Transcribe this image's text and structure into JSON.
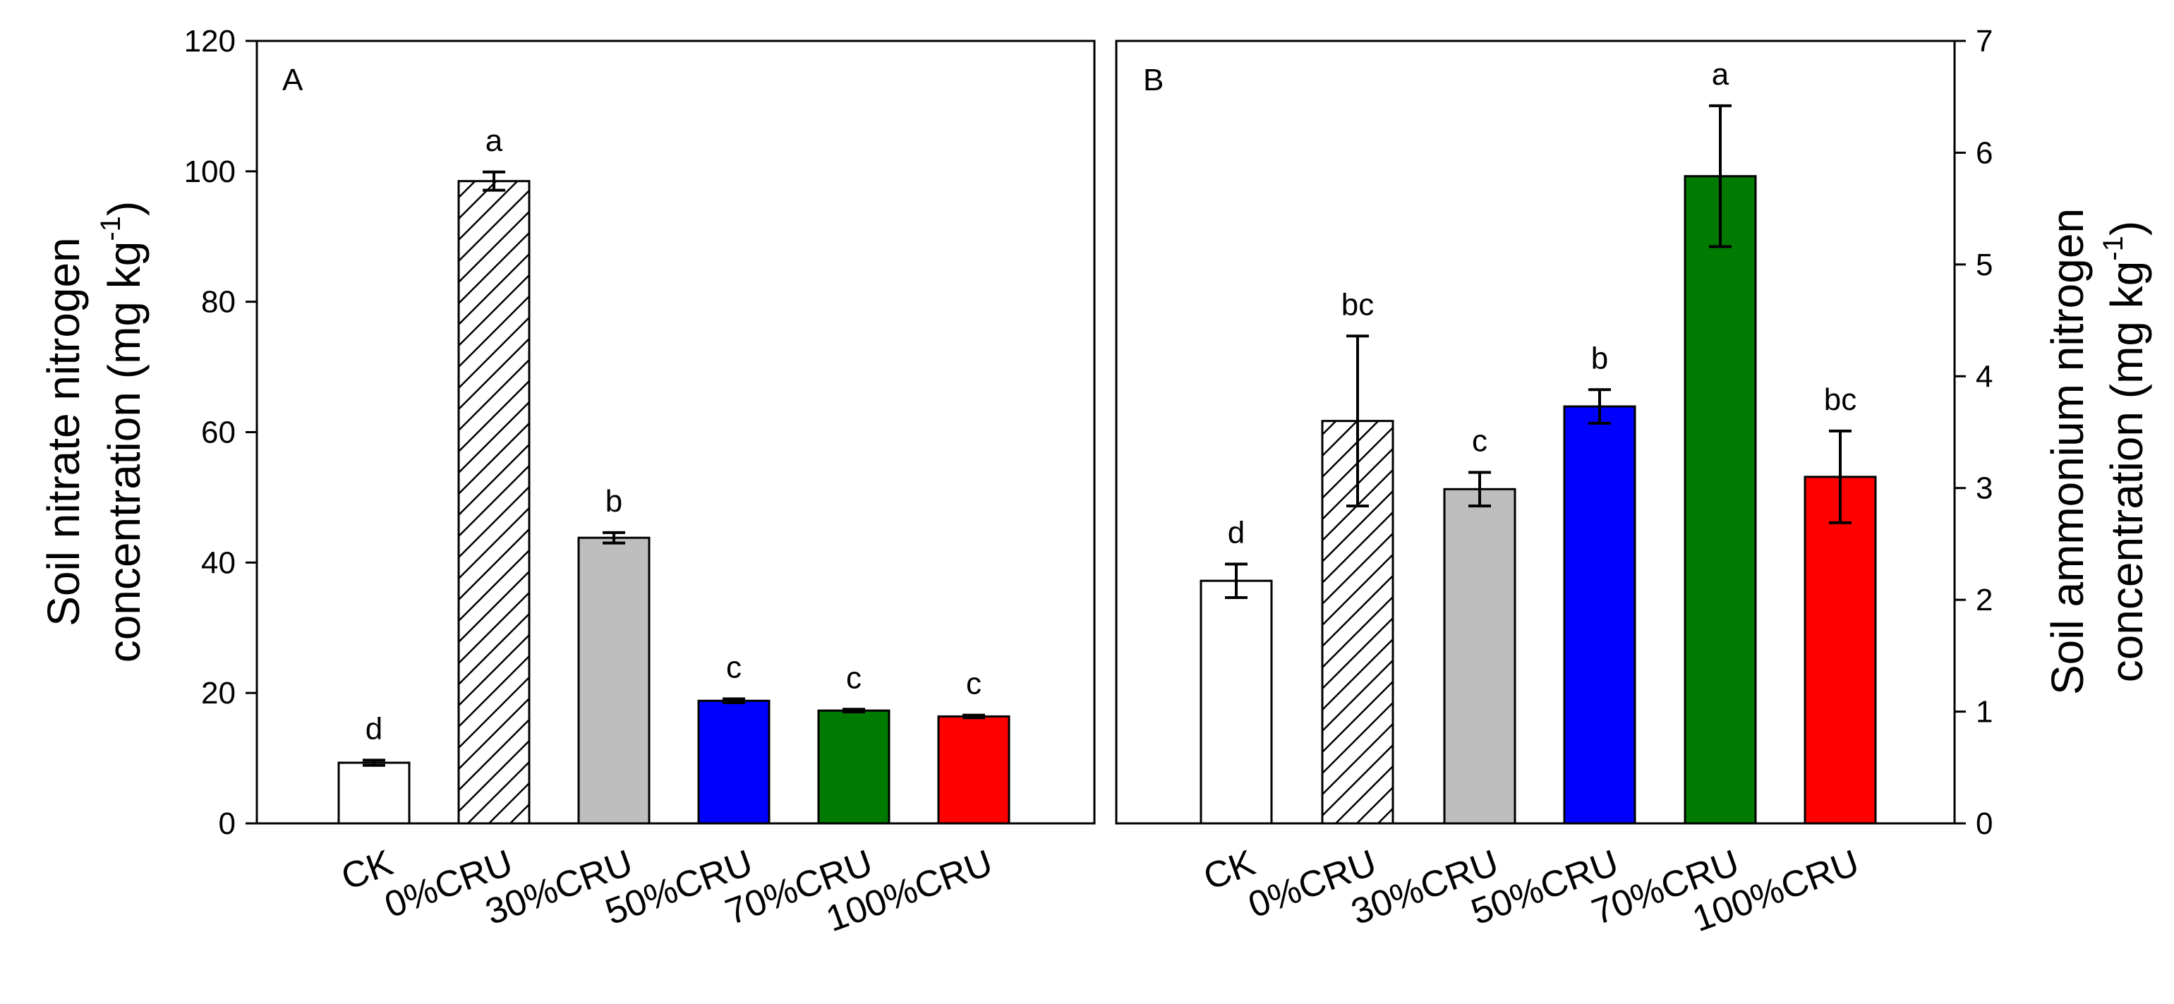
{
  "figure": {
    "categories": [
      "CK",
      "0%CRU",
      "30%CRU",
      "50%CRU",
      "70%CRU",
      "100%CRU"
    ],
    "bar_fills": [
      "#ffffff",
      "hatch",
      "#bebebe",
      "#0000ff",
      "#007a00",
      "#ff0000"
    ]
  },
  "chart_data": [
    {
      "type": "bar",
      "panel": "A",
      "categories": [
        "CK",
        "0%CRU",
        "30%CRU",
        "50%CRU",
        "70%CRU",
        "100%CRU"
      ],
      "values": [
        9.3,
        98.5,
        43.8,
        18.8,
        17.3,
        16.4
      ],
      "errors": [
        0.4,
        1.4,
        0.8,
        0.3,
        0.2,
        0.2
      ],
      "significance": [
        "d",
        "a",
        "b",
        "c",
        "c",
        "c"
      ],
      "ylabel_line1": "Soil nitrate nitrogen",
      "ylabel_line2": "concentration (mg kg",
      "ylabel_sup": "-1",
      "ylabel_close": ")",
      "ylim": [
        0,
        120
      ],
      "yticks": [
        0,
        20,
        40,
        60,
        80,
        100,
        120
      ],
      "ytick_labels": [
        "0",
        "20",
        "40",
        "60",
        "80",
        "100",
        "120"
      ],
      "axis_side": "left"
    },
    {
      "type": "bar",
      "panel": "B",
      "categories": [
        "CK",
        "0%CRU",
        "30%CRU",
        "50%CRU",
        "70%CRU",
        "100%CRU"
      ],
      "values": [
        2.17,
        3.6,
        2.99,
        3.73,
        5.79,
        3.1
      ],
      "errors": [
        0.15,
        0.76,
        0.15,
        0.15,
        0.63,
        0.41
      ],
      "significance": [
        "d",
        "bc",
        "c",
        "b",
        "a",
        "bc"
      ],
      "ylabel_line1": "Soil ammonium nitrogen",
      "ylabel_line2": "concentration  (mg kg",
      "ylabel_sup": "-1",
      "ylabel_close": ")",
      "ylim": [
        0,
        7
      ],
      "yticks": [
        0,
        1,
        2,
        3,
        4,
        5,
        6,
        7
      ],
      "ytick_labels": [
        "0",
        "1",
        "2",
        "3",
        "4",
        "5",
        "6",
        "7"
      ],
      "axis_side": "right"
    }
  ]
}
